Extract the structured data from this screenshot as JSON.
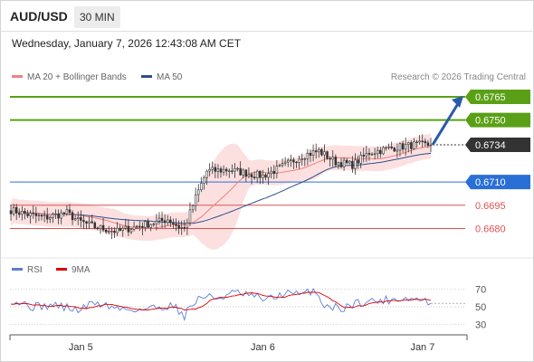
{
  "header": {
    "symbol": "AUD/USD",
    "timeframe": "30 MIN"
  },
  "datetime": "Wednesday, January 7, 2026 12:43:08 AM CET",
  "legend": {
    "ma20": {
      "label": "MA 20 + Bollinger Bands",
      "color": "#f08080"
    },
    "ma50": {
      "label": "MA 50",
      "color": "#2d4f8c"
    },
    "rsi": {
      "label": "RSI",
      "color": "#5b7fd6"
    },
    "ma9": {
      "label": "9MA",
      "color": "#dd0000"
    }
  },
  "copyright": "Research © 2026 Trading Central",
  "chart_data": {
    "type": "candlestick",
    "symbol": "AUD/USD",
    "interval": "30 MIN",
    "price_axis": {
      "min": 0.6661,
      "max": 0.6772
    },
    "x_ticks": [
      "Jan 5",
      "Jan 6",
      "Jan 7"
    ],
    "levels": [
      {
        "label": "0.6765",
        "value": 0.6765,
        "style": "resistance",
        "color": "#5aa016"
      },
      {
        "label": "0.6750",
        "value": 0.675,
        "style": "resistance",
        "color": "#5aa016"
      },
      {
        "label": "0.6734",
        "value": 0.6734,
        "style": "current",
        "color": "#333333"
      },
      {
        "label": "0.6710",
        "value": 0.671,
        "style": "pivot",
        "color": "#2a6fd6"
      },
      {
        "label": "0.6695",
        "value": 0.6695,
        "style": "support",
        "color": "#e05050"
      },
      {
        "label": "0.6680",
        "value": 0.668,
        "style": "support",
        "color": "#e05050"
      }
    ],
    "forecast": {
      "from": 0.6734,
      "to": 0.6765,
      "direction": "up",
      "color": "#2a5aa8"
    },
    "close_anchors": [
      [
        0,
        0.6692
      ],
      [
        6,
        0.6689
      ],
      [
        12,
        0.6687
      ],
      [
        20,
        0.669
      ],
      [
        24,
        0.6685
      ],
      [
        30,
        0.6681
      ],
      [
        38,
        0.6678
      ],
      [
        44,
        0.6681
      ],
      [
        52,
        0.6684
      ],
      [
        56,
        0.6686
      ],
      [
        60,
        0.6681
      ],
      [
        62,
        0.668
      ],
      [
        66,
        0.67
      ],
      [
        70,
        0.6717
      ],
      [
        78,
        0.6718
      ],
      [
        86,
        0.6715
      ],
      [
        90,
        0.6714
      ],
      [
        96,
        0.6719
      ],
      [
        104,
        0.6727
      ],
      [
        110,
        0.673
      ],
      [
        116,
        0.6723
      ],
      [
        122,
        0.6721
      ],
      [
        128,
        0.6729
      ],
      [
        136,
        0.6732
      ],
      [
        144,
        0.6734
      ],
      [
        150,
        0.6734
      ]
    ],
    "rsi": {
      "axis": {
        "min": 20,
        "max": 80
      },
      "ticks": [
        70,
        50,
        30
      ],
      "anchors": [
        [
          0,
          58
        ],
        [
          8,
          50
        ],
        [
          16,
          52
        ],
        [
          24,
          46
        ],
        [
          30,
          55
        ],
        [
          38,
          48
        ],
        [
          46,
          47
        ],
        [
          54,
          50
        ],
        [
          58,
          52
        ],
        [
          62,
          40
        ],
        [
          64,
          50
        ],
        [
          68,
          62
        ],
        [
          74,
          60
        ],
        [
          80,
          66
        ],
        [
          86,
          62
        ],
        [
          92,
          58
        ],
        [
          98,
          66
        ],
        [
          104,
          63
        ],
        [
          108,
          70
        ],
        [
          112,
          52
        ],
        [
          118,
          48
        ],
        [
          124,
          55
        ],
        [
          132,
          57
        ],
        [
          140,
          60
        ],
        [
          146,
          58
        ],
        [
          150,
          55
        ]
      ]
    }
  }
}
